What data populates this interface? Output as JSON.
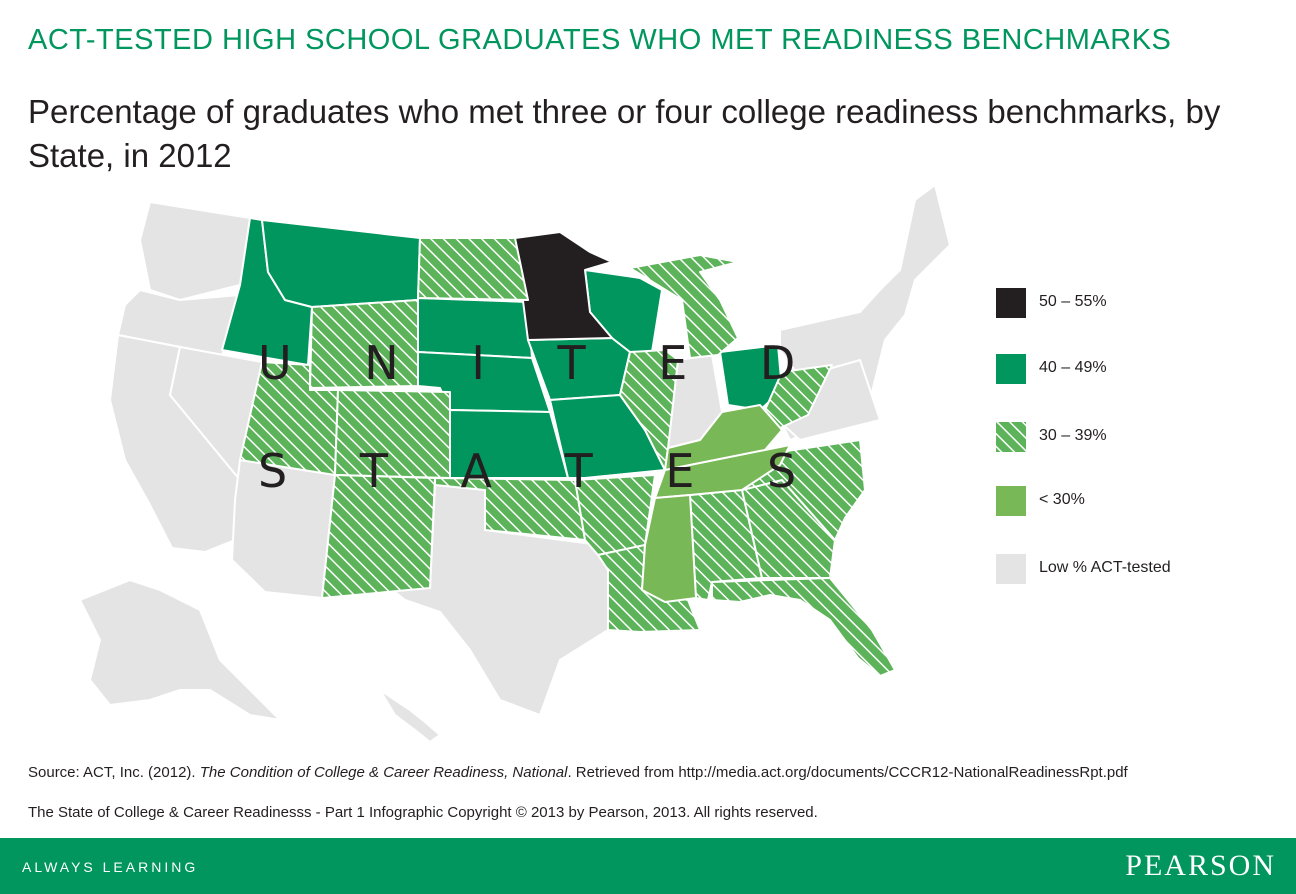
{
  "header": {
    "kicker": "ACT-TESTED HIGH SCHOOL GRADUATES WHO MET READINESS BENCHMARKS",
    "subtitle": "Percentage of graduates who met three or four college readiness benchmarks, by State, in 2012"
  },
  "map": {
    "label_line1": "U N I T E D",
    "label_line2": "S T A T E S",
    "categories": {
      "50-55": [
        "Minnesota"
      ],
      "40-49": [
        "Montana",
        "Idaho",
        "Wisconsin",
        "Ohio",
        "South Dakota",
        "Nebraska",
        "Kansas",
        "Iowa",
        "Missouri"
      ],
      "30-39": [
        "North Dakota",
        "Wyoming",
        "Utah",
        "Colorado",
        "Arizona",
        "New Mexico",
        "Oklahoma",
        "Arkansas",
        "Louisiana",
        "Illinois",
        "Michigan",
        "West Virginia",
        "Alabama",
        "Georgia",
        "South Carolina",
        "North Carolina",
        "Florida"
      ],
      "lt30": [
        "Kentucky",
        "Tennessee",
        "Mississippi"
      ],
      "low": [
        "Washington",
        "Oregon",
        "California",
        "Nevada",
        "Texas",
        "Indiana",
        "Virginia",
        "Pennsylvania",
        "New York",
        "Maine",
        "Alaska",
        "Hawaii"
      ]
    }
  },
  "legend": [
    {
      "key": "50-55",
      "label": "50 – 55%",
      "color": "#231f20",
      "pattern": "solid"
    },
    {
      "key": "40-49",
      "label": "40 – 49%",
      "color": "#00965e",
      "pattern": "solid"
    },
    {
      "key": "30-39",
      "label": "30 – 39%",
      "color": "#5cb35a",
      "pattern": "hatch"
    },
    {
      "key": "lt30",
      "label": "< 30%",
      "color": "#79b857",
      "pattern": "solid"
    },
    {
      "key": "low",
      "label": "Low % ACT-tested",
      "color": "#e4e4e4",
      "pattern": "solid"
    }
  ],
  "footnotes": {
    "source_prefix": "Source",
    "source_org": ": ACT, Inc. (2012). ",
    "source_title": "The Condition of  College & Career Readiness, National",
    "source_suffix": ". Retrieved from http://media.act.org/documents/CCCR12-NationalReadinessRpt.pdf",
    "copyright": "The State of College & Career Readinesss - Part 1 Infographic Copyright © 2013 by Pearson, 2013. All rights reserved."
  },
  "footer": {
    "tagline": "ALWAYS LEARNING",
    "brand": "PEARSON"
  },
  "colors": {
    "accent": "#00965e",
    "dark": "#231f20",
    "hatch": "#5cb35a",
    "light_green": "#79b857",
    "gray": "#e4e4e4"
  }
}
